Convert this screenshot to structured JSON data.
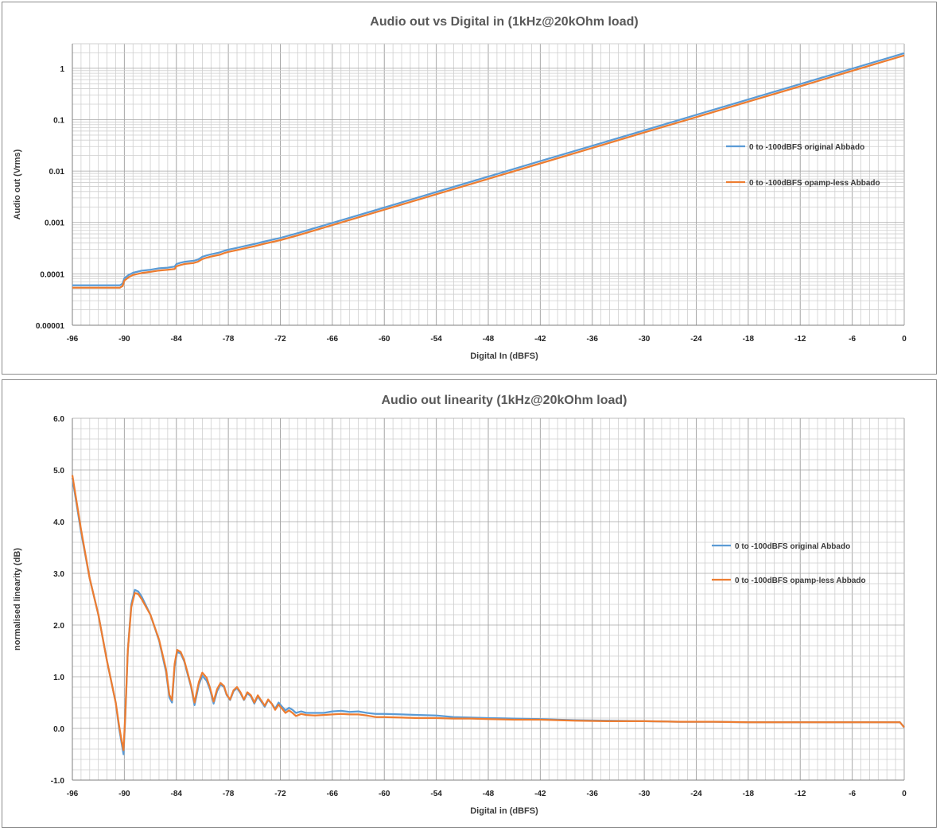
{
  "colors": {
    "series1": "#5b9bd5",
    "series2": "#ed7d31",
    "grid": "#bfbfbf",
    "axis": "#7f7f7f"
  },
  "chart_data": [
    {
      "type": "line",
      "title": "Audio out vs Digital in (1kHz@20kOhm load)",
      "xlabel": "Digital In (dBFS)",
      "ylabel": "Audio out (Vrms)",
      "xlim": [
        -96,
        0
      ],
      "ylim": [
        1e-05,
        3
      ],
      "y_scale": "log",
      "grid": true,
      "legend_position": "right",
      "x_ticks": [
        "-96",
        "-90",
        "-84",
        "-78",
        "-72",
        "-66",
        "-60",
        "-54",
        "-48",
        "-42",
        "-36",
        "-30",
        "-24",
        "-18",
        "-12",
        "-6",
        "0"
      ],
      "y_ticks": [
        "1",
        "0.1",
        "0.01",
        "0.001",
        "0.0001",
        "0.00001"
      ],
      "series": [
        {
          "name": "0 to -100dBFS original Abbado",
          "x": [
            -96,
            -93,
            -91,
            -90.5,
            -90.2,
            -90,
            -89.5,
            -89,
            -88,
            -87,
            -86,
            -85,
            -84.6,
            -84.2,
            -84,
            -83.5,
            -83,
            -82,
            -81.5,
            -81,
            -80.5,
            -80,
            -79,
            -78.5,
            -78,
            -77,
            -76,
            -75,
            -74,
            -72,
            -70,
            -66,
            -60,
            -54,
            -48,
            -42,
            -36,
            -30,
            -24,
            -18,
            -12,
            -6,
            0
          ],
          "y": [
            6e-05,
            6e-05,
            6e-05,
            6e-05,
            6.5e-05,
            8.2e-05,
            9.5e-05,
            0.000105,
            0.000115,
            0.00012,
            0.000128,
            0.000132,
            0.000135,
            0.000138,
            0.000155,
            0.000165,
            0.000172,
            0.00018,
            0.00019,
            0.000215,
            0.000228,
            0.00024,
            0.00026,
            0.00028,
            0.000295,
            0.00032,
            0.00035,
            0.00038,
            0.00042,
            0.0005,
            0.00062,
            0.00098,
            0.00195,
            0.0039,
            0.0078,
            0.0156,
            0.031,
            0.062,
            0.124,
            0.247,
            0.493,
            0.983,
            1.96
          ]
        },
        {
          "name": "0 to -100dBFS opamp-less Abbado",
          "x": [
            -96,
            -93,
            -91,
            -90.5,
            -90.2,
            -90,
            -89.5,
            -89,
            -88,
            -87,
            -86,
            -85,
            -84.6,
            -84.2,
            -84,
            -83.5,
            -83,
            -82,
            -81.5,
            -81,
            -80.5,
            -80,
            -79,
            -78.5,
            -78,
            -77,
            -76,
            -75,
            -74,
            -72,
            -70,
            -66,
            -60,
            -54,
            -48,
            -42,
            -36,
            -30,
            -24,
            -18,
            -12,
            -6,
            0
          ],
          "y": [
            5.4e-05,
            5.4e-05,
            5.4e-05,
            5.4e-05,
            5.8e-05,
            7.4e-05,
            8.6e-05,
            9.5e-05,
            0.000104,
            0.000109,
            0.000116,
            0.00012,
            0.000122,
            0.000124,
            0.00014,
            0.000149,
            0.000156,
            0.000163,
            0.000172,
            0.000194,
            0.000206,
            0.000217,
            0.000235,
            0.000253,
            0.000267,
            0.00029,
            0.000317,
            0.000344,
            0.00038,
            0.000453,
            0.000561,
            0.000887,
            0.00177,
            0.00353,
            0.00706,
            0.0141,
            0.0281,
            0.0562,
            0.112,
            0.224,
            0.446,
            0.89,
            1.78
          ]
        }
      ]
    },
    {
      "type": "line",
      "title": "Audio out  linearity (1kHz@20kOhm load)",
      "xlabel": "Digital in (dBFS)",
      "ylabel": "normalised linearity (dB)",
      "xlim": [
        -96,
        0
      ],
      "ylim": [
        -1,
        6
      ],
      "grid": true,
      "legend_position": "right",
      "x_ticks": [
        "-96",
        "-90",
        "-84",
        "-78",
        "-72",
        "-66",
        "-60",
        "-54",
        "-48",
        "-42",
        "-36",
        "-30",
        "-24",
        "-18",
        "-12",
        "-6",
        "0"
      ],
      "y_ticks": [
        "6.0",
        "5.0",
        "4.0",
        "3.0",
        "2.0",
        "1.0",
        "0.0",
        "-1.0"
      ],
      "series": [
        {
          "name": "0 to -100dBFS original Abbado",
          "x": [
            -96,
            -95,
            -94,
            -93,
            -92,
            -91,
            -90.6,
            -90.3,
            -90.1,
            -89.9,
            -89.6,
            -89.2,
            -88.8,
            -88.4,
            -88,
            -87,
            -86,
            -85.2,
            -84.8,
            -84.5,
            -84.2,
            -83.9,
            -83.5,
            -83.1,
            -82.7,
            -82.3,
            -81.9,
            -81.4,
            -81,
            -80.5,
            -80.1,
            -79.7,
            -79.3,
            -78.9,
            -78.5,
            -78.2,
            -77.8,
            -77.4,
            -77,
            -76.6,
            -76.2,
            -75.8,
            -75.4,
            -75,
            -74.6,
            -74.2,
            -73.8,
            -73.4,
            -73,
            -72.6,
            -72.2,
            -71.8,
            -71.4,
            -71,
            -70.6,
            -70.2,
            -69.6,
            -69,
            -68,
            -67,
            -66,
            -65,
            -64,
            -63,
            -62,
            -61,
            -60,
            -58,
            -56,
            -54,
            -52,
            -50,
            -48,
            -45,
            -42,
            -38,
            -34,
            -30,
            -26,
            -22,
            -18,
            -14,
            -10,
            -6,
            -2,
            -0.5,
            0
          ],
          "y": [
            4.85,
            3.8,
            2.9,
            2.2,
            1.3,
            0.5,
            0.0,
            -0.3,
            -0.5,
            0.2,
            1.5,
            2.4,
            2.68,
            2.65,
            2.55,
            2.2,
            1.7,
            1.1,
            0.6,
            0.5,
            1.2,
            1.48,
            1.45,
            1.3,
            1.05,
            0.8,
            0.45,
            0.85,
            1.02,
            0.92,
            0.75,
            0.48,
            0.72,
            0.85,
            0.8,
            0.65,
            0.55,
            0.72,
            0.78,
            0.68,
            0.55,
            0.68,
            0.62,
            0.48,
            0.62,
            0.52,
            0.42,
            0.55,
            0.48,
            0.38,
            0.5,
            0.42,
            0.35,
            0.4,
            0.36,
            0.3,
            0.33,
            0.3,
            0.3,
            0.3,
            0.33,
            0.34,
            0.32,
            0.33,
            0.3,
            0.28,
            0.28,
            0.27,
            0.26,
            0.25,
            0.22,
            0.21,
            0.2,
            0.19,
            0.18,
            0.16,
            0.15,
            0.14,
            0.13,
            0.13,
            0.12,
            0.12,
            0.12,
            0.12,
            0.12,
            0.12,
            0.02
          ]
        },
        {
          "name": "0 to -100dBFS opamp-less Abbado",
          "x": [
            -96,
            -95,
            -94,
            -93,
            -92,
            -91,
            -90.6,
            -90.3,
            -90.1,
            -89.9,
            -89.6,
            -89.2,
            -88.8,
            -88.4,
            -88,
            -87,
            -86,
            -85.2,
            -84.8,
            -84.5,
            -84.2,
            -83.9,
            -83.5,
            -83.1,
            -82.7,
            -82.3,
            -81.9,
            -81.4,
            -81,
            -80.5,
            -80.1,
            -79.7,
            -79.3,
            -78.9,
            -78.5,
            -78.2,
            -77.8,
            -77.4,
            -77,
            -76.6,
            -76.2,
            -75.8,
            -75.4,
            -75,
            -74.6,
            -74.2,
            -73.8,
            -73.4,
            -73,
            -72.6,
            -72.2,
            -71.8,
            -71.4,
            -71,
            -70.6,
            -70.2,
            -69.6,
            -69,
            -68,
            -67,
            -66,
            -65,
            -64,
            -63,
            -62,
            -61,
            -60,
            -58,
            -56,
            -54,
            -52,
            -50,
            -48,
            -45,
            -42,
            -38,
            -34,
            -30,
            -26,
            -22,
            -18,
            -14,
            -10,
            -6,
            -2,
            -0.5,
            0
          ],
          "y": [
            4.9,
            3.85,
            2.9,
            2.2,
            1.3,
            0.5,
            0.05,
            -0.25,
            -0.42,
            0.25,
            1.5,
            2.35,
            2.62,
            2.6,
            2.5,
            2.2,
            1.72,
            1.15,
            0.65,
            0.55,
            1.25,
            1.52,
            1.48,
            1.32,
            1.08,
            0.82,
            0.5,
            0.9,
            1.08,
            0.98,
            0.78,
            0.52,
            0.76,
            0.88,
            0.82,
            0.66,
            0.56,
            0.74,
            0.8,
            0.7,
            0.56,
            0.7,
            0.64,
            0.5,
            0.64,
            0.54,
            0.44,
            0.56,
            0.48,
            0.36,
            0.46,
            0.38,
            0.3,
            0.35,
            0.3,
            0.24,
            0.28,
            0.26,
            0.25,
            0.26,
            0.27,
            0.28,
            0.27,
            0.27,
            0.25,
            0.22,
            0.22,
            0.21,
            0.2,
            0.2,
            0.19,
            0.19,
            0.18,
            0.17,
            0.17,
            0.15,
            0.14,
            0.14,
            0.13,
            0.13,
            0.12,
            0.12,
            0.12,
            0.12,
            0.12,
            0.12,
            0.02
          ]
        }
      ]
    }
  ]
}
